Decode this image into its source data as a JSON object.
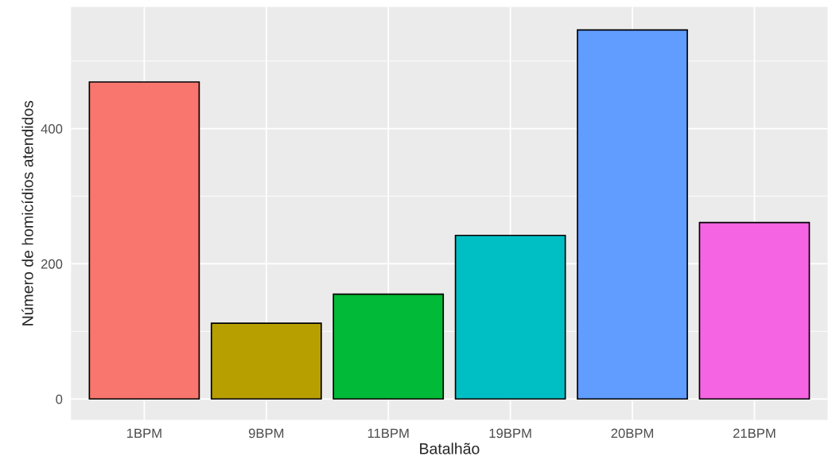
{
  "chart_data": {
    "type": "bar",
    "xlabel": "Batalhão",
    "ylabel": "Número de homicídios atendidos",
    "categories": [
      "1BPM",
      "9BPM",
      "11BPM",
      "19BPM",
      "20BPM",
      "21BPM"
    ],
    "values": [
      469,
      112,
      155,
      242,
      546,
      261
    ],
    "colors": [
      "#f8766d",
      "#b79f00",
      "#00ba38",
      "#00bfc4",
      "#619cff",
      "#f564e3"
    ],
    "ylim": [
      -31,
      580
    ],
    "yticks": [
      0,
      {
        "value": 100,
        "label": null
      },
      200,
      {
        "value": 300,
        "label": null
      },
      400,
      {
        "value": 500,
        "label": null
      }
    ],
    "grid": true,
    "legend": false
  }
}
